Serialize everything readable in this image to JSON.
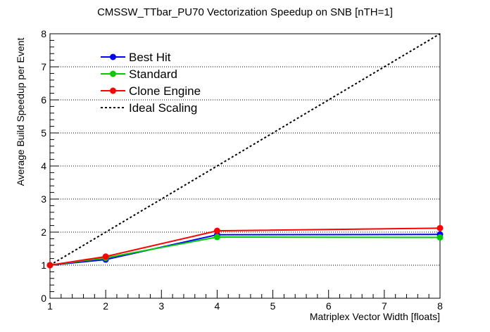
{
  "chart_data": {
    "type": "line",
    "title": "CMSSW_TTbar_PU70 Vectorization Speedup on SNB [nTH=1]",
    "xlabel": "Matriplex Vector Width [floats]",
    "ylabel": "Average Build Speedup per Event",
    "xlim": [
      1,
      8
    ],
    "ylim": [
      0,
      8
    ],
    "xticks": [
      1,
      2,
      3,
      4,
      5,
      6,
      7,
      8
    ],
    "yticks": [
      0,
      1,
      2,
      3,
      4,
      5,
      6,
      7,
      8
    ],
    "grid": "horizontal dotted",
    "legend_position": "top-left",
    "series": [
      {
        "name": "Best Hit",
        "color": "#0000ff",
        "marker": "circle",
        "style": "solid",
        "x": [
          1,
          2,
          4,
          8
        ],
        "y": [
          1.0,
          1.17,
          1.92,
          1.93
        ]
      },
      {
        "name": "Standard",
        "color": "#00cc00",
        "marker": "circle",
        "style": "solid",
        "x": [
          1,
          2,
          4,
          8
        ],
        "y": [
          1.0,
          1.22,
          1.85,
          1.84
        ]
      },
      {
        "name": "Clone Engine",
        "color": "#ff0000",
        "marker": "circle",
        "style": "solid",
        "x": [
          1,
          2,
          4,
          8
        ],
        "y": [
          1.0,
          1.26,
          2.04,
          2.12
        ]
      },
      {
        "name": "Ideal Scaling",
        "color": "#000000",
        "marker": "none",
        "style": "dotted",
        "x": [
          1,
          8
        ],
        "y": [
          1,
          8
        ]
      }
    ]
  }
}
